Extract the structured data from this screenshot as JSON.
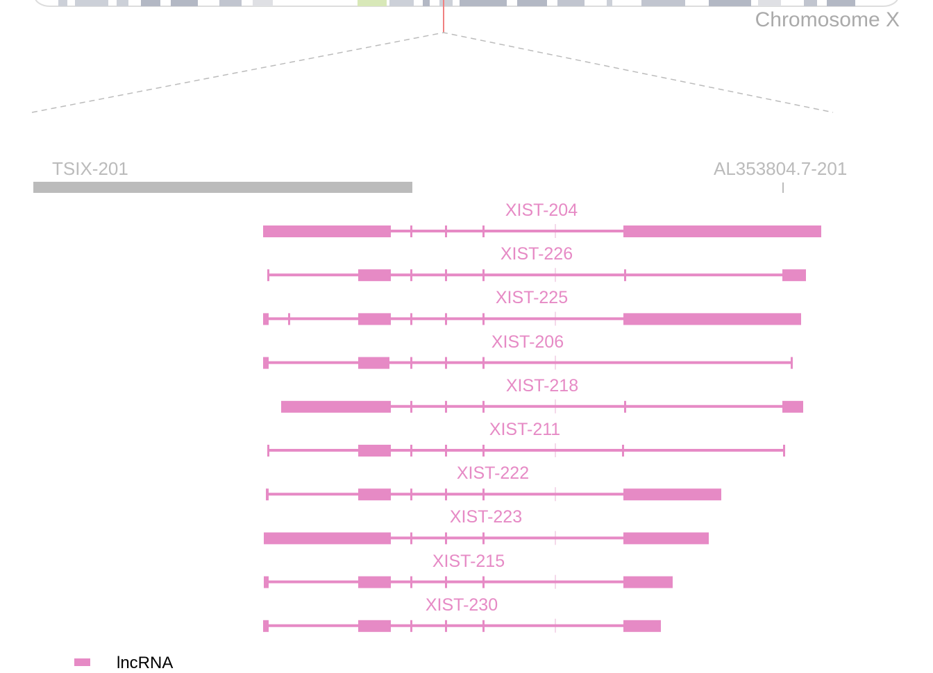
{
  "chromosome": {
    "label": "Chromosome X"
  },
  "neighbors": [
    {
      "name": "TSIX-201"
    },
    {
      "name": "AL353804.7-201"
    }
  ],
  "transcripts": [
    {
      "name": "XIST-204"
    },
    {
      "name": "XIST-226"
    },
    {
      "name": "XIST-225"
    },
    {
      "name": "XIST-206"
    },
    {
      "name": "XIST-218"
    },
    {
      "name": "XIST-211"
    },
    {
      "name": "XIST-222"
    },
    {
      "name": "XIST-223"
    },
    {
      "name": "XIST-215"
    },
    {
      "name": "XIST-230"
    }
  ],
  "legend": {
    "label": "lncRNA",
    "color": "#e68ac5"
  },
  "colors": {
    "transcript": "#e68ac5",
    "neighbor": "#bbbbbb",
    "marker": "#f08080"
  }
}
